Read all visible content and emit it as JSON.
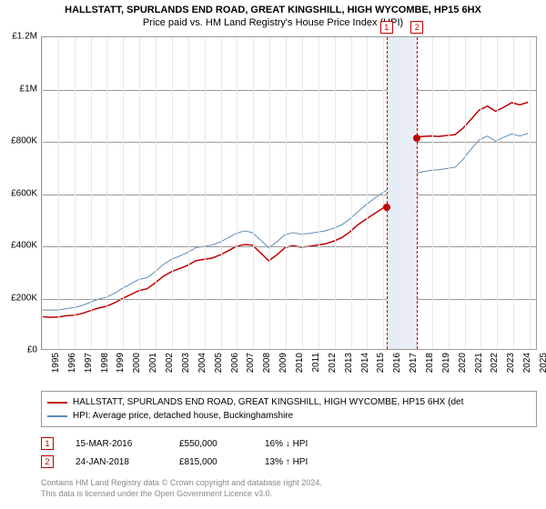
{
  "title": "HALLSTATT, SPURLANDS END ROAD, GREAT KINGSHILL, HIGH WYCOMBE, HP15 6HX",
  "subtitle": "Price paid vs. HM Land Registry's House Price Index (HPI)",
  "chart": {
    "type": "line",
    "background_color": "#ffffff",
    "grid_color_h": "#999999",
    "grid_color_v": "#e8e8e8",
    "border_color": "#999999",
    "ylim": [
      0,
      1200000
    ],
    "ytick_step": 200000,
    "y_ticks": [
      {
        "value": 0,
        "label": "£0"
      },
      {
        "value": 200000,
        "label": "£200K"
      },
      {
        "value": 400000,
        "label": "£400K"
      },
      {
        "value": 600000,
        "label": "£600K"
      },
      {
        "value": 800000,
        "label": "£800K"
      },
      {
        "value": 1000000,
        "label": "£1M"
      },
      {
        "value": 1200000,
        "label": "£1.2M"
      }
    ],
    "x_years": [
      1995,
      1996,
      1997,
      1998,
      1999,
      2000,
      2001,
      2002,
      2003,
      2004,
      2005,
      2006,
      2007,
      2008,
      2009,
      2010,
      2011,
      2012,
      2013,
      2014,
      2015,
      2016,
      2017,
      2018,
      2019,
      2020,
      2021,
      2022,
      2023,
      2024,
      2025
    ],
    "xlim": [
      1995,
      2025.5
    ],
    "highlight_band": {
      "start": 2016.2,
      "end": 2018.07,
      "color": "#e6edf5"
    },
    "markers": [
      {
        "id": "1",
        "year": 2016.2,
        "value": 550000,
        "color": "#c00000"
      },
      {
        "id": "2",
        "year": 2018.07,
        "value": 815000,
        "color": "#c00000"
      }
    ],
    "series": [
      {
        "name": "HALLSTATT, SPURLANDS END ROAD, GREAT KINGSHILL, HIGH WYCOMBE, HP15 6HX (det",
        "color": "#c00000",
        "line_width": 1.5,
        "points": [
          [
            1995,
            125000
          ],
          [
            1995.5,
            122000
          ],
          [
            1996,
            123000
          ],
          [
            1996.5,
            128000
          ],
          [
            1997,
            130000
          ],
          [
            1997.5,
            137000
          ],
          [
            1998,
            148000
          ],
          [
            1998.5,
            158000
          ],
          [
            1999,
            165000
          ],
          [
            1999.5,
            178000
          ],
          [
            2000,
            195000
          ],
          [
            2000.5,
            210000
          ],
          [
            2001,
            225000
          ],
          [
            2001.5,
            232000
          ],
          [
            2002,
            255000
          ],
          [
            2002.5,
            280000
          ],
          [
            2003,
            298000
          ],
          [
            2003.5,
            310000
          ],
          [
            2004,
            322000
          ],
          [
            2004.5,
            340000
          ],
          [
            2005,
            345000
          ],
          [
            2005.5,
            350000
          ],
          [
            2006,
            362000
          ],
          [
            2006.5,
            378000
          ],
          [
            2007,
            395000
          ],
          [
            2007.5,
            402000
          ],
          [
            2008,
            400000
          ],
          [
            2008.5,
            370000
          ],
          [
            2009,
            340000
          ],
          [
            2009.5,
            362000
          ],
          [
            2010,
            390000
          ],
          [
            2010.5,
            398000
          ],
          [
            2011,
            392000
          ],
          [
            2011.5,
            395000
          ],
          [
            2012,
            400000
          ],
          [
            2012.5,
            405000
          ],
          [
            2013,
            415000
          ],
          [
            2013.5,
            428000
          ],
          [
            2014,
            450000
          ],
          [
            2014.5,
            478000
          ],
          [
            2015,
            500000
          ],
          [
            2015.5,
            520000
          ],
          [
            2016,
            540000
          ],
          [
            2016.2,
            550000
          ],
          [
            2016.5,
            558000
          ],
          [
            2017,
            565000
          ],
          [
            2017.5,
            580000
          ],
          [
            2018,
            810000
          ],
          [
            2018.07,
            815000
          ],
          [
            2018.5,
            818000
          ],
          [
            2019,
            820000
          ],
          [
            2019.5,
            818000
          ],
          [
            2020,
            822000
          ],
          [
            2020.5,
            825000
          ],
          [
            2021,
            850000
          ],
          [
            2021.5,
            885000
          ],
          [
            2022,
            920000
          ],
          [
            2022.5,
            935000
          ],
          [
            2023,
            915000
          ],
          [
            2023.5,
            930000
          ],
          [
            2024,
            948000
          ],
          [
            2024.5,
            940000
          ],
          [
            2025,
            950000
          ]
        ]
      },
      {
        "name": "HPI: Average price, detached house, Buckinghamshire",
        "color": "#5b8bb8",
        "line_width": 1,
        "points": [
          [
            1995,
            150000
          ],
          [
            1995.5,
            150000
          ],
          [
            1996,
            150000
          ],
          [
            1996.5,
            155000
          ],
          [
            1997,
            160000
          ],
          [
            1997.5,
            168000
          ],
          [
            1998,
            180000
          ],
          [
            1998.5,
            192000
          ],
          [
            1999,
            200000
          ],
          [
            1999.5,
            215000
          ],
          [
            2000,
            235000
          ],
          [
            2000.5,
            252000
          ],
          [
            2001,
            268000
          ],
          [
            2001.5,
            275000
          ],
          [
            2002,
            298000
          ],
          [
            2002.5,
            325000
          ],
          [
            2003,
            345000
          ],
          [
            2003.5,
            358000
          ],
          [
            2004,
            372000
          ],
          [
            2004.5,
            390000
          ],
          [
            2005,
            395000
          ],
          [
            2005.5,
            400000
          ],
          [
            2006,
            412000
          ],
          [
            2006.5,
            428000
          ],
          [
            2007,
            445000
          ],
          [
            2007.5,
            455000
          ],
          [
            2008,
            448000
          ],
          [
            2008.5,
            420000
          ],
          [
            2009,
            390000
          ],
          [
            2009.5,
            412000
          ],
          [
            2010,
            440000
          ],
          [
            2010.5,
            448000
          ],
          [
            2011,
            442000
          ],
          [
            2011.5,
            445000
          ],
          [
            2012,
            450000
          ],
          [
            2012.5,
            455000
          ],
          [
            2013,
            465000
          ],
          [
            2013.5,
            478000
          ],
          [
            2014,
            500000
          ],
          [
            2014.5,
            528000
          ],
          [
            2015,
            555000
          ],
          [
            2015.5,
            578000
          ],
          [
            2016,
            600000
          ],
          [
            2016.5,
            620000
          ],
          [
            2017,
            640000
          ],
          [
            2017.5,
            660000
          ],
          [
            2018,
            675000
          ],
          [
            2018.5,
            682000
          ],
          [
            2019,
            688000
          ],
          [
            2019.5,
            690000
          ],
          [
            2020,
            695000
          ],
          [
            2020.5,
            700000
          ],
          [
            2021,
            730000
          ],
          [
            2021.5,
            770000
          ],
          [
            2022,
            805000
          ],
          [
            2022.5,
            820000
          ],
          [
            2023,
            800000
          ],
          [
            2023.5,
            815000
          ],
          [
            2024,
            828000
          ],
          [
            2024.5,
            820000
          ],
          [
            2025,
            830000
          ]
        ]
      }
    ],
    "label_fontsize": 10
  },
  "legend": {
    "items": [
      {
        "color": "#c00000",
        "label": "HALLSTATT, SPURLANDS END ROAD, GREAT KINGSHILL, HIGH WYCOMBE, HP15 6HX (det"
      },
      {
        "color": "#5b8bb8",
        "label": "HPI: Average price, detached house, Buckinghamshire"
      }
    ]
  },
  "data_points": [
    {
      "marker": "1",
      "marker_color": "#c00000",
      "date": "15-MAR-2016",
      "price": "£550,000",
      "hpi_delta": "16% ↓ HPI"
    },
    {
      "marker": "2",
      "marker_color": "#c00000",
      "date": "24-JAN-2018",
      "price": "£815,000",
      "hpi_delta": "13% ↑ HPI"
    }
  ],
  "footer": {
    "line1": "Contains HM Land Registry data © Crown copyright and database right 2024.",
    "line2": "This data is licensed under the Open Government Licence v3.0."
  }
}
